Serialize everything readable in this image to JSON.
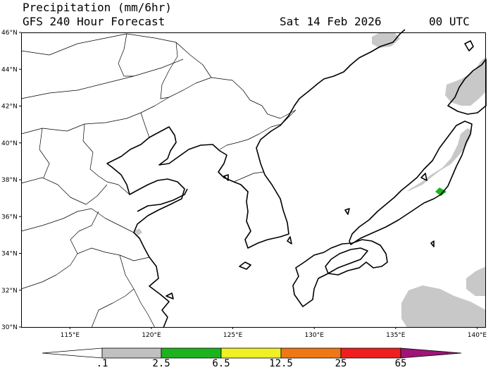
{
  "header": {
    "title": "Precipitation (mm/6hr)",
    "subtitle": "GFS 240 Hour Forecast",
    "valid_date": "Sat 14 Feb 2026",
    "valid_time": "00 UTC"
  },
  "map": {
    "lon_range": [
      112,
      140.5
    ],
    "lat_range": [
      30,
      46
    ],
    "lon_ticks": [
      {
        "value": 115,
        "label": "115°E"
      },
      {
        "value": 120,
        "label": "120°E"
      },
      {
        "value": 125,
        "label": "125°E"
      },
      {
        "value": 130,
        "label": "130°E"
      },
      {
        "value": 135,
        "label": "135°E"
      },
      {
        "value": 140,
        "label": "140°E"
      }
    ],
    "lat_ticks": [
      {
        "value": 30,
        "label": "30°N"
      },
      {
        "value": 32,
        "label": "32°N"
      },
      {
        "value": 34,
        "label": "34°N"
      },
      {
        "value": 36,
        "label": "36°N"
      },
      {
        "value": 38,
        "label": "38°N"
      },
      {
        "value": 40,
        "label": "40°N"
      },
      {
        "value": 42,
        "label": "42°N"
      },
      {
        "value": 44,
        "label": "44°N"
      },
      {
        "value": 46,
        "label": "46°N"
      }
    ]
  },
  "colorbar": {
    "labels": [
      ".1",
      "2.5",
      "6.5",
      "12.5",
      "25",
      "65"
    ],
    "bins": [
      {
        "color": "#c0c0c0"
      },
      {
        "color": "#1cb41c"
      },
      {
        "color": "#f0f024"
      },
      {
        "color": "#f07814"
      },
      {
        "color": "#f01e1e"
      },
      {
        "color": "#a0147a"
      }
    ]
  }
}
